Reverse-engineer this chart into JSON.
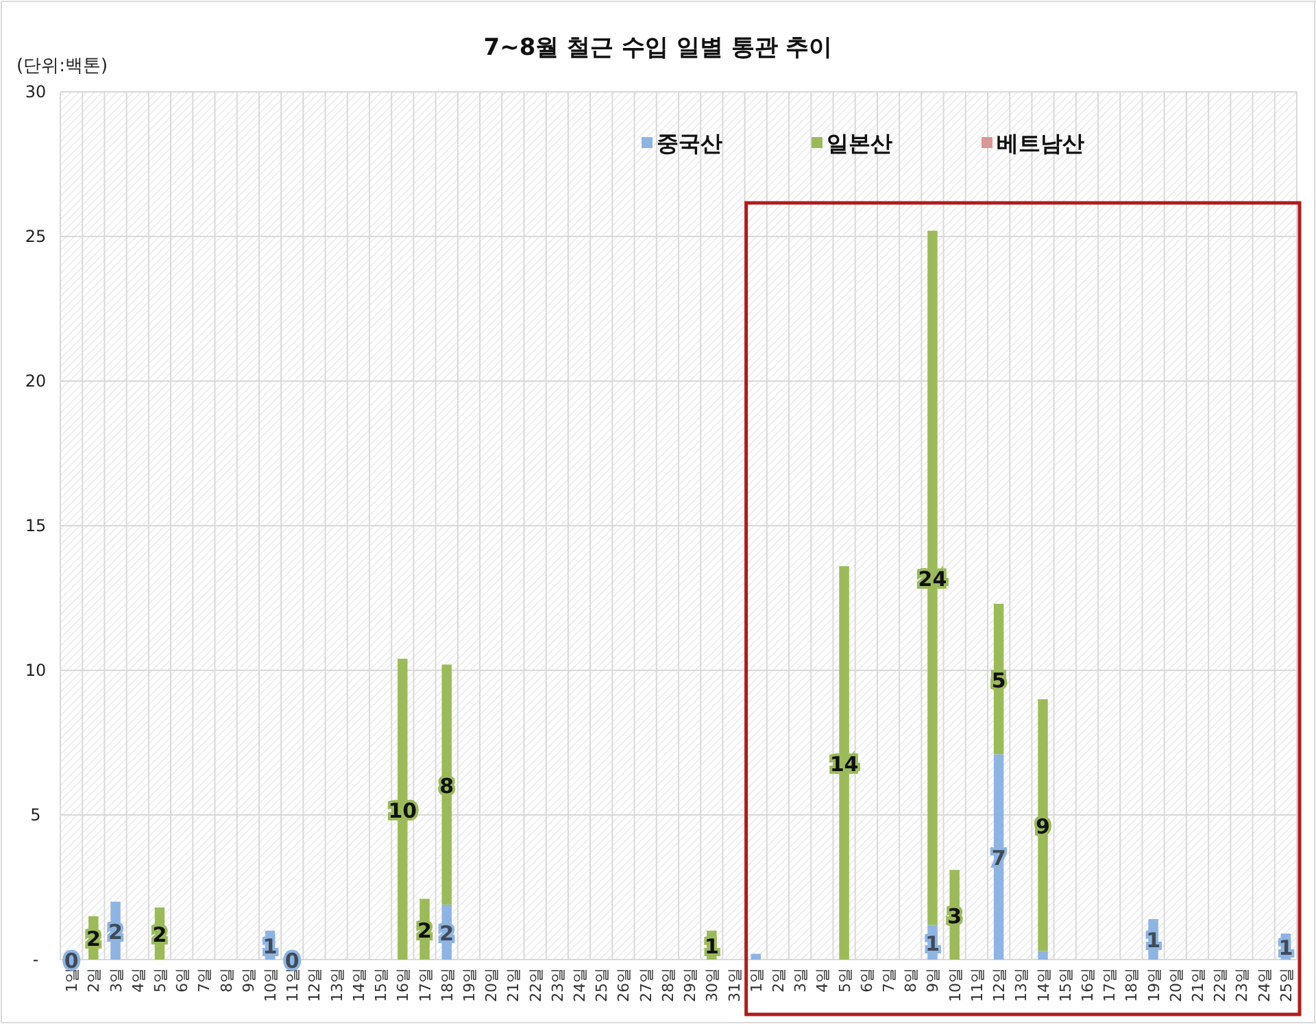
{
  "chart_data": {
    "type": "bar",
    "stacked": true,
    "title": "7~8월 철근 수입 일별 통관 추이",
    "annotations": [
      "(단위:백톤)"
    ],
    "categories": [
      "1일",
      "2일",
      "3일",
      "4일",
      "5일",
      "6일",
      "7일",
      "8일",
      "9일",
      "10일",
      "11일",
      "12일",
      "13일",
      "14일",
      "15일",
      "16일",
      "17일",
      "18일",
      "19일",
      "20일",
      "21일",
      "22일",
      "23일",
      "24일",
      "25일",
      "26일",
      "27일",
      "28일",
      "29일",
      "30일",
      "31일",
      "1일",
      "2일",
      "3일",
      "4일",
      "5일",
      "6일",
      "7일",
      "8일",
      "9일",
      "10일",
      "11일",
      "12일",
      "13일",
      "14일",
      "15일",
      "16일",
      "17일",
      "18일",
      "19일",
      "20일",
      "21일",
      "22일",
      "23일",
      "24일",
      "25일"
    ],
    "series": [
      {
        "name": "중국산",
        "color": "#8eb4e3",
        "values": [
          0,
          null,
          2.0,
          null,
          null,
          null,
          null,
          null,
          null,
          1.0,
          0,
          null,
          null,
          null,
          null,
          null,
          null,
          1.9,
          null,
          null,
          null,
          null,
          null,
          null,
          null,
          null,
          null,
          null,
          null,
          null,
          null,
          0.2,
          null,
          null,
          null,
          null,
          null,
          null,
          null,
          1.2,
          null,
          null,
          7.1,
          null,
          0.3,
          null,
          null,
          null,
          null,
          1.4,
          null,
          null,
          null,
          null,
          null,
          0.9
        ],
        "value_labels": [
          "0",
          null,
          "2",
          null,
          null,
          null,
          null,
          null,
          null,
          "1",
          "0",
          null,
          null,
          null,
          null,
          null,
          null,
          "2",
          null,
          null,
          null,
          null,
          null,
          null,
          null,
          null,
          null,
          null,
          null,
          null,
          null,
          null,
          null,
          null,
          null,
          null,
          null,
          null,
          null,
          "1",
          null,
          null,
          "7",
          null,
          null,
          null,
          null,
          null,
          null,
          "1",
          null,
          null,
          null,
          null,
          null,
          "1"
        ]
      },
      {
        "name": "일본산",
        "color": "#9bbb59",
        "values": [
          null,
          1.5,
          null,
          null,
          1.8,
          null,
          null,
          null,
          null,
          null,
          null,
          null,
          null,
          null,
          null,
          10.4,
          2.1,
          8.3,
          null,
          null,
          null,
          null,
          null,
          null,
          null,
          null,
          null,
          null,
          null,
          1.0,
          null,
          null,
          null,
          null,
          null,
          13.6,
          null,
          null,
          null,
          24.0,
          3.1,
          null,
          5.2,
          null,
          8.7,
          null,
          null,
          null,
          null,
          null,
          null,
          null,
          null,
          null,
          null,
          null
        ],
        "value_labels": [
          null,
          "2",
          null,
          null,
          "2",
          null,
          null,
          null,
          null,
          null,
          null,
          null,
          null,
          null,
          null,
          "10",
          "2",
          "8",
          null,
          null,
          null,
          null,
          null,
          null,
          null,
          null,
          null,
          null,
          null,
          "1",
          null,
          null,
          null,
          null,
          null,
          "14",
          null,
          null,
          null,
          "24",
          "3",
          null,
          "5",
          null,
          "9",
          null,
          null,
          null,
          null,
          null,
          null,
          null,
          null,
          null,
          null,
          null
        ]
      },
      {
        "name": "베트남산",
        "color": "#d99694",
        "values": [
          null,
          null,
          null,
          null,
          null,
          null,
          null,
          null,
          null,
          null,
          null,
          null,
          null,
          null,
          null,
          null,
          null,
          null,
          null,
          null,
          null,
          null,
          null,
          null,
          null,
          null,
          null,
          null,
          null,
          null,
          null,
          null,
          null,
          null,
          null,
          null,
          null,
          null,
          null,
          null,
          null,
          null,
          null,
          null,
          null,
          null,
          null,
          null,
          null,
          null,
          null,
          null,
          null,
          null,
          null,
          null
        ]
      }
    ],
    "ylim": [
      0,
      30
    ],
    "yticks": [
      {
        "value": 0,
        "label": "-"
      },
      5,
      10,
      15,
      20,
      25,
      30
    ],
    "grid": true,
    "legend": "top"
  }
}
